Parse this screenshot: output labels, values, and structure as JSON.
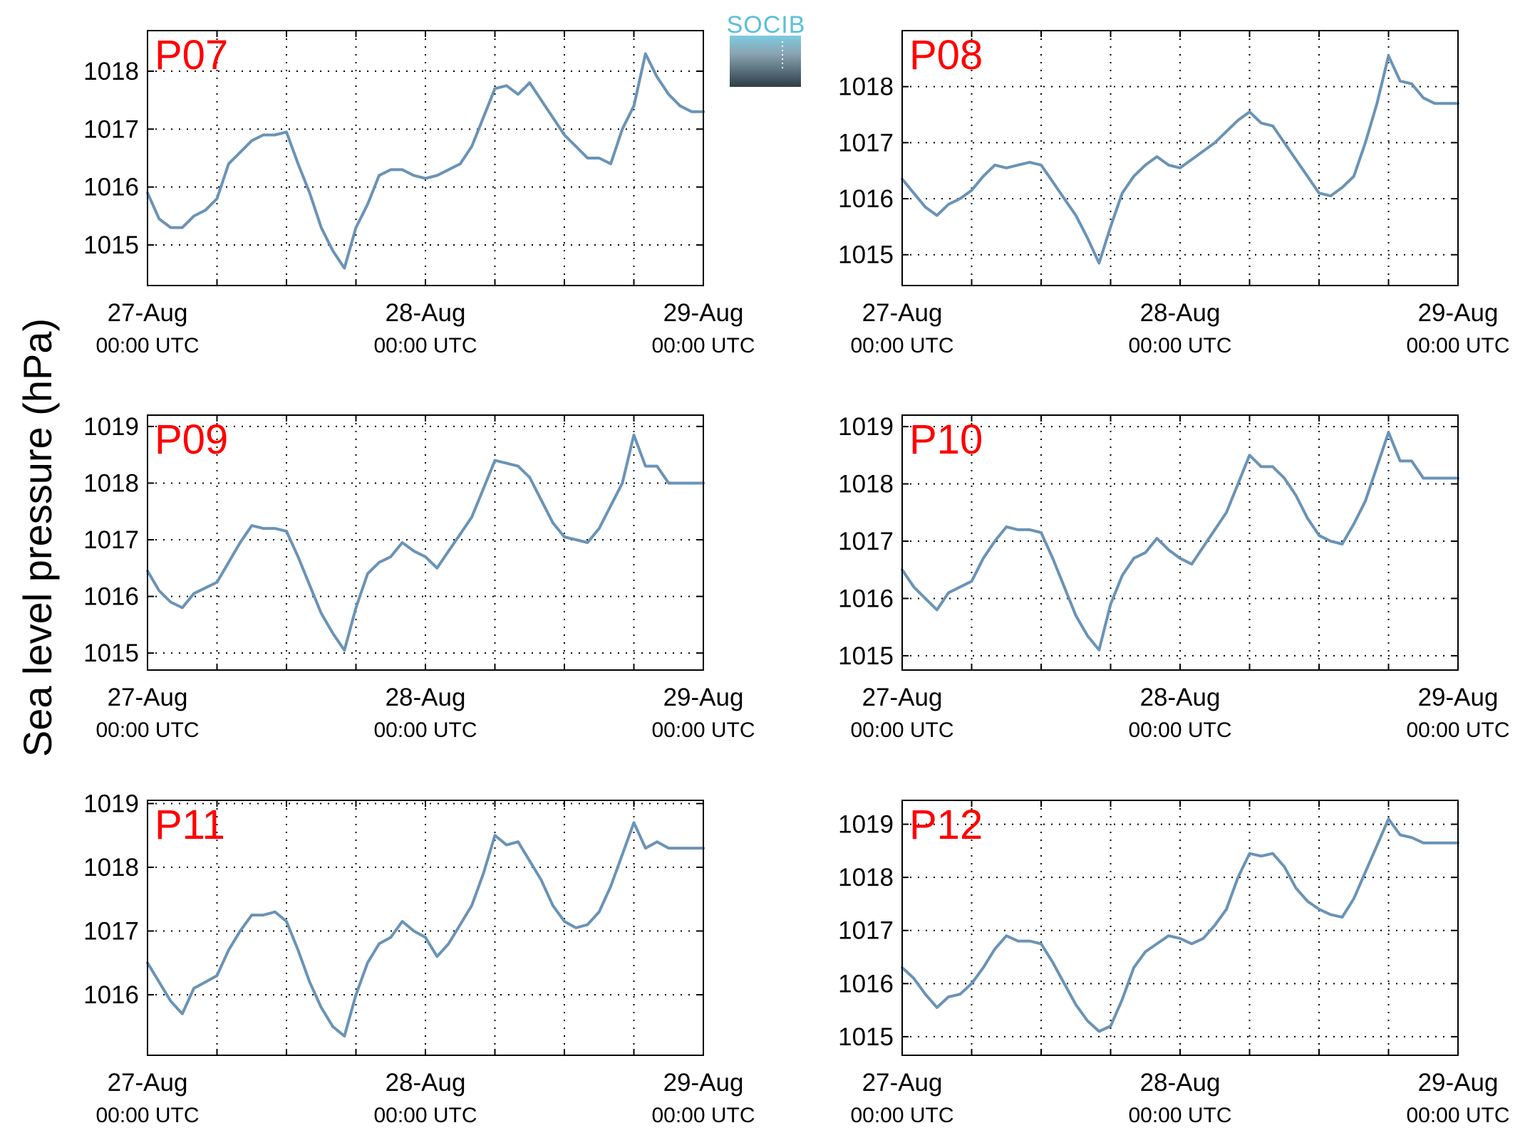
{
  "figure": {
    "ylabel": "Sea level pressure (hPa)",
    "logo_text": "SOCIB",
    "line_color": "#6a93b6",
    "label_color": "#ff0000",
    "x_ticks": [
      {
        "x": 0,
        "date": "27-Aug",
        "time": "00:00 UTC"
      },
      {
        "x": 24,
        "date": "28-Aug",
        "time": "00:00 UTC"
      },
      {
        "x": 48,
        "date": "29-Aug",
        "time": "00:00 UTC"
      }
    ]
  },
  "chart_data": [
    {
      "type": "line",
      "label": "P07",
      "xlim": [
        0,
        48
      ],
      "ylim": [
        1014.3,
        1018.7
      ],
      "yticks": [
        1015,
        1016,
        1017,
        1018
      ],
      "grid": true,
      "series": [
        {
          "x": [
            0,
            1,
            2,
            3,
            4,
            5,
            6,
            7,
            8,
            9,
            10,
            11,
            12,
            13,
            14,
            15,
            16,
            17,
            18,
            19,
            20,
            21,
            22,
            23,
            24,
            25,
            26,
            27,
            28,
            29,
            30,
            31,
            32,
            33,
            34,
            35,
            36,
            37,
            38,
            39,
            40,
            41,
            42,
            43,
            44,
            45,
            46,
            47,
            48
          ],
          "y": [
            1015.9,
            1015.45,
            1015.3,
            1015.3,
            1015.5,
            1015.6,
            1015.8,
            1016.4,
            1016.6,
            1016.8,
            1016.9,
            1016.9,
            1016.95,
            1016.4,
            1015.9,
            1015.3,
            1014.9,
            1014.6,
            1015.3,
            1015.7,
            1016.2,
            1016.3,
            1016.3,
            1016.2,
            1016.15,
            1016.2,
            1016.3,
            1016.4,
            1016.7,
            1017.2,
            1017.7,
            1017.75,
            1017.6,
            1017.8,
            1017.5,
            1017.2,
            1016.9,
            1016.7,
            1016.5,
            1016.5,
            1016.4,
            1017,
            1017.4,
            1018.3,
            1017.9,
            1017.6,
            1017.4,
            1017.3,
            1017.3
          ]
        }
      ]
    },
    {
      "type": "line",
      "label": "P08",
      "xlim": [
        0,
        48
      ],
      "ylim": [
        1014.45,
        1019.0
      ],
      "yticks": [
        1015,
        1016,
        1017,
        1018
      ],
      "grid": true,
      "series": [
        {
          "x": [
            0,
            1,
            2,
            3,
            4,
            5,
            6,
            7,
            8,
            9,
            10,
            11,
            12,
            13,
            14,
            15,
            16,
            17,
            18,
            19,
            20,
            21,
            22,
            23,
            24,
            25,
            26,
            27,
            28,
            29,
            30,
            31,
            32,
            33,
            34,
            35,
            36,
            37,
            38,
            39,
            40,
            41,
            42,
            43,
            44,
            45,
            46,
            47,
            48
          ],
          "y": [
            1016.35,
            1016.1,
            1015.85,
            1015.7,
            1015.9,
            1016.0,
            1016.15,
            1016.4,
            1016.6,
            1016.55,
            1016.6,
            1016.65,
            1016.6,
            1016.3,
            1016.0,
            1015.7,
            1015.3,
            1014.85,
            1015.5,
            1016.1,
            1016.4,
            1016.6,
            1016.75,
            1016.6,
            1016.55,
            1016.7,
            1016.85,
            1017.0,
            1017.2,
            1017.4,
            1017.55,
            1017.35,
            1017.3,
            1017.0,
            1016.7,
            1016.4,
            1016.1,
            1016.05,
            1016.2,
            1016.4,
            1017.0,
            1017.7,
            1018.55,
            1018.1,
            1018.05,
            1017.8,
            1017.7,
            1017.7,
            1017.7
          ]
        }
      ]
    },
    {
      "type": "line",
      "label": "P09",
      "xlim": [
        0,
        48
      ],
      "ylim": [
        1014.7,
        1019.2
      ],
      "yticks": [
        1015,
        1016,
        1017,
        1018,
        1019
      ],
      "grid": true,
      "series": [
        {
          "x": [
            0,
            1,
            2,
            3,
            4,
            5,
            6,
            7,
            8,
            9,
            10,
            11,
            12,
            13,
            14,
            15,
            16,
            17,
            18,
            19,
            20,
            21,
            22,
            23,
            24,
            25,
            26,
            27,
            28,
            29,
            30,
            31,
            32,
            33,
            34,
            35,
            36,
            37,
            38,
            39,
            40,
            41,
            42,
            43,
            44,
            45,
            46,
            47,
            48
          ],
          "y": [
            1016.45,
            1016.1,
            1015.9,
            1015.8,
            1016.05,
            1016.15,
            1016.25,
            1016.6,
            1016.95,
            1017.25,
            1017.2,
            1017.2,
            1017.15,
            1016.7,
            1016.2,
            1015.7,
            1015.35,
            1015.05,
            1015.8,
            1016.4,
            1016.6,
            1016.7,
            1016.95,
            1016.8,
            1016.7,
            1016.5,
            1016.8,
            1017.1,
            1017.4,
            1017.9,
            1018.4,
            1018.35,
            1018.3,
            1018.1,
            1017.7,
            1017.3,
            1017.05,
            1017.0,
            1016.95,
            1017.2,
            1017.6,
            1018.0,
            1018.85,
            1018.3,
            1018.3,
            1018.0,
            1018.0,
            1018.0,
            1018.0
          ]
        }
      ]
    },
    {
      "type": "line",
      "label": "P10",
      "xlim": [
        0,
        48
      ],
      "ylim": [
        1014.75,
        1019.2
      ],
      "yticks": [
        1015,
        1016,
        1017,
        1018,
        1019
      ],
      "grid": true,
      "series": [
        {
          "x": [
            0,
            1,
            2,
            3,
            4,
            5,
            6,
            7,
            8,
            9,
            10,
            11,
            12,
            13,
            14,
            15,
            16,
            17,
            18,
            19,
            20,
            21,
            22,
            23,
            24,
            25,
            26,
            27,
            28,
            29,
            30,
            31,
            32,
            33,
            34,
            35,
            36,
            37,
            38,
            39,
            40,
            41,
            42,
            43,
            44,
            45,
            46,
            47,
            48
          ],
          "y": [
            1016.5,
            1016.2,
            1016.0,
            1015.8,
            1016.1,
            1016.2,
            1016.3,
            1016.7,
            1017.0,
            1017.25,
            1017.2,
            1017.2,
            1017.15,
            1016.7,
            1016.2,
            1015.7,
            1015.35,
            1015.1,
            1015.9,
            1016.4,
            1016.7,
            1016.8,
            1017.05,
            1016.85,
            1016.7,
            1016.6,
            1016.9,
            1017.2,
            1017.5,
            1018.0,
            1018.5,
            1018.3,
            1018.3,
            1018.1,
            1017.8,
            1017.4,
            1017.1,
            1017.0,
            1016.95,
            1017.3,
            1017.7,
            1018.3,
            1018.9,
            1018.4,
            1018.4,
            1018.1,
            1018.1,
            1018.1,
            1018.1
          ]
        }
      ]
    },
    {
      "type": "line",
      "label": "P11",
      "xlim": [
        0,
        48
      ],
      "ylim": [
        1015.05,
        1019.05
      ],
      "yticks": [
        1016,
        1017,
        1018,
        1019
      ],
      "grid": true,
      "series": [
        {
          "x": [
            0,
            1,
            2,
            3,
            4,
            5,
            6,
            7,
            8,
            9,
            10,
            11,
            12,
            13,
            14,
            15,
            16,
            17,
            18,
            19,
            20,
            21,
            22,
            23,
            24,
            25,
            26,
            27,
            28,
            29,
            30,
            31,
            32,
            33,
            34,
            35,
            36,
            37,
            38,
            39,
            40,
            41,
            42,
            43,
            44,
            45,
            46,
            47,
            48
          ],
          "y": [
            1016.5,
            1016.2,
            1015.9,
            1015.7,
            1016.1,
            1016.2,
            1016.3,
            1016.7,
            1017.0,
            1017.25,
            1017.25,
            1017.3,
            1017.15,
            1016.7,
            1016.2,
            1015.8,
            1015.5,
            1015.35,
            1016.0,
            1016.5,
            1016.8,
            1016.9,
            1017.15,
            1017.0,
            1016.9,
            1016.6,
            1016.8,
            1017.1,
            1017.4,
            1017.9,
            1018.5,
            1018.35,
            1018.4,
            1018.1,
            1017.8,
            1017.4,
            1017.15,
            1017.05,
            1017.1,
            1017.3,
            1017.7,
            1018.2,
            1018.7,
            1018.3,
            1018.4,
            1018.3,
            1018.3,
            1018.3,
            1018.3
          ]
        }
      ]
    },
    {
      "type": "line",
      "label": "P12",
      "xlim": [
        0,
        48
      ],
      "ylim": [
        1014.65,
        1019.45
      ],
      "yticks": [
        1015,
        1016,
        1017,
        1018,
        1019
      ],
      "grid": true,
      "series": [
        {
          "x": [
            0,
            1,
            2,
            3,
            4,
            5,
            6,
            7,
            8,
            9,
            10,
            11,
            12,
            13,
            14,
            15,
            16,
            17,
            18,
            19,
            20,
            21,
            22,
            23,
            24,
            25,
            26,
            27,
            28,
            29,
            30,
            31,
            32,
            33,
            34,
            35,
            36,
            37,
            38,
            39,
            40,
            41,
            42,
            43,
            44,
            45,
            46,
            47,
            48
          ],
          "y": [
            1016.3,
            1016.1,
            1015.8,
            1015.55,
            1015.75,
            1015.8,
            1016.0,
            1016.3,
            1016.65,
            1016.9,
            1016.8,
            1016.8,
            1016.75,
            1016.4,
            1016.0,
            1015.6,
            1015.3,
            1015.1,
            1015.2,
            1015.7,
            1016.3,
            1016.6,
            1016.75,
            1016.9,
            1016.85,
            1016.75,
            1016.85,
            1017.1,
            1017.4,
            1018.0,
            1018.45,
            1018.4,
            1018.45,
            1018.2,
            1017.8,
            1017.55,
            1017.4,
            1017.3,
            1017.25,
            1017.6,
            1018.1,
            1018.6,
            1019.1,
            1018.8,
            1018.75,
            1018.65,
            1018.65,
            1018.65,
            1018.65
          ]
        }
      ]
    }
  ]
}
